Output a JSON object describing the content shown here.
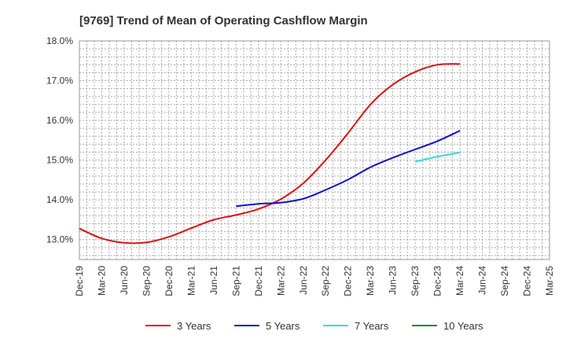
{
  "chart_data": {
    "type": "line",
    "title": "[9769]  Trend of Mean of Operating Cashflow Margin",
    "xlabel": "",
    "ylabel": "",
    "ylim": [
      12.5,
      18.0
    ],
    "y_ticks": [
      "13.0%",
      "14.0%",
      "15.0%",
      "16.0%",
      "17.0%",
      "18.0%"
    ],
    "y_tick_values": [
      13.0,
      14.0,
      15.0,
      16.0,
      17.0,
      18.0
    ],
    "x_tick_labels": [
      "Dec-19",
      "Mar-20",
      "Jun-20",
      "Sep-20",
      "Dec-20",
      "Mar-21",
      "Jun-21",
      "Sep-21",
      "Dec-21",
      "Mar-22",
      "Jun-22",
      "Sep-22",
      "Dec-22",
      "Mar-23",
      "Jun-23",
      "Sep-23",
      "Dec-23",
      "Mar-24",
      "Jun-24",
      "Sep-24",
      "Dec-24",
      "Mar-25"
    ],
    "grid": true,
    "legend_position": "bottom",
    "series": [
      {
        "name": "3 Years",
        "color": "#dd1111",
        "x": [
          "Dec-19",
          "Mar-20",
          "Jun-20",
          "Sep-20",
          "Dec-20",
          "Mar-21",
          "Jun-21",
          "Sep-21",
          "Dec-21",
          "Mar-22",
          "Jun-22",
          "Sep-22",
          "Dec-22",
          "Mar-23",
          "Jun-23",
          "Sep-23",
          "Dec-23",
          "Mar-24"
        ],
        "values": [
          13.28,
          13.03,
          12.92,
          12.93,
          13.07,
          13.29,
          13.5,
          13.62,
          13.77,
          14.02,
          14.42,
          15.0,
          15.68,
          16.4,
          16.9,
          17.22,
          17.4,
          17.42
        ]
      },
      {
        "name": "5 Years",
        "color": "#1111cc",
        "x": [
          "Sep-21",
          "Dec-21",
          "Mar-22",
          "Jun-22",
          "Sep-22",
          "Dec-22",
          "Mar-23",
          "Jun-23",
          "Sep-23",
          "Dec-23",
          "Mar-24"
        ],
        "values": [
          13.84,
          13.9,
          13.93,
          14.03,
          14.25,
          14.51,
          14.82,
          15.06,
          15.27,
          15.48,
          15.74
        ]
      },
      {
        "name": "7 Years",
        "color": "#33dddd",
        "x": [
          "Sep-23",
          "Dec-23",
          "Mar-24"
        ],
        "values": [
          14.96,
          15.09,
          15.19
        ]
      },
      {
        "name": "10 Years",
        "color": "#228822",
        "x": [],
        "values": []
      }
    ]
  }
}
